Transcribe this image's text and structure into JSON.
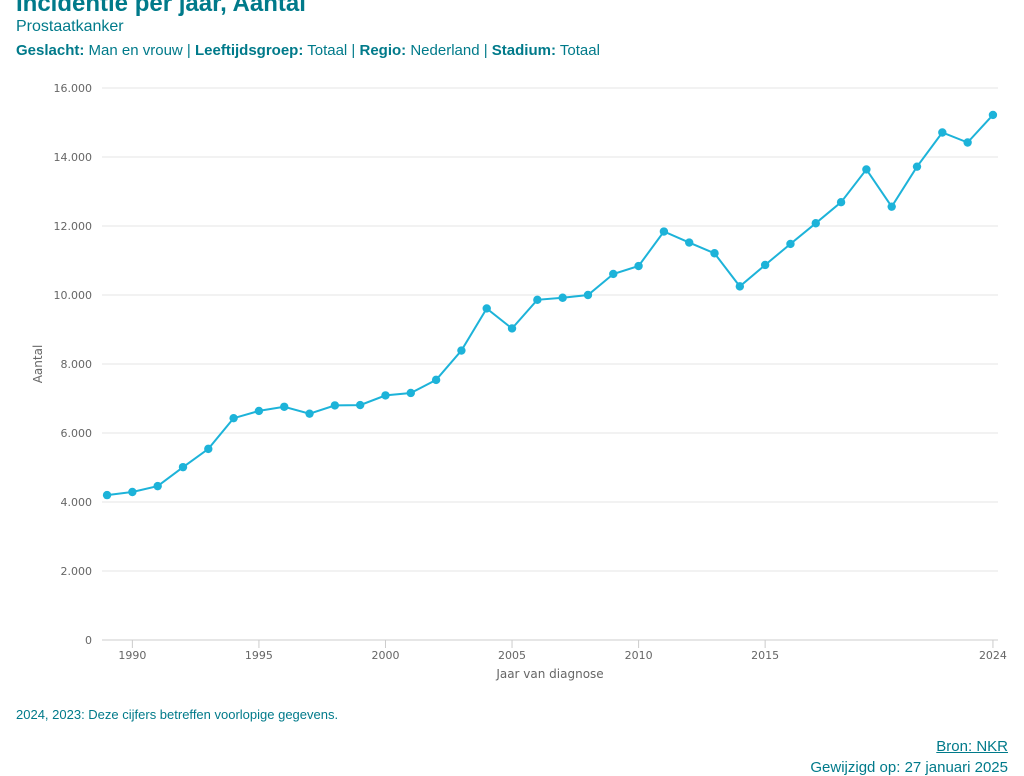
{
  "header": {
    "title": "Incidentie per jaar, Aantal",
    "subtitle": "Prostaatkanker",
    "filters": [
      {
        "label": "Geslacht:",
        "value": "Man en vrouw"
      },
      {
        "label": "Leeftijdsgroep:",
        "value": "Totaal"
      },
      {
        "label": "Regio:",
        "value": "Nederland"
      },
      {
        "label": "Stadium:",
        "value": "Totaal"
      }
    ],
    "separator": " | "
  },
  "footer": {
    "note": "2024, 2023: Deze cijfers betreffen voorlopige gegevens.",
    "source": "Bron: NKR",
    "changed": "Gewijzigd op: 27 januari 2025"
  },
  "colors": {
    "series": "#1db3d9",
    "text": "#007a8a",
    "grid": "#e6e6e6",
    "axis_text": "#666666"
  },
  "chart_data": {
    "type": "line",
    "title": "",
    "xlabel": "Jaar van diagnose",
    "ylabel": "Aantal",
    "ylim": [
      0,
      16000
    ],
    "xlim": [
      1988.8,
      2024.2
    ],
    "yticks": [
      0,
      2000,
      4000,
      6000,
      8000,
      10000,
      12000,
      14000,
      16000
    ],
    "ytick_labels": [
      "0",
      "2.000",
      "4.000",
      "6.000",
      "8.000",
      "10.000",
      "12.000",
      "14.000",
      "16.000"
    ],
    "xticks": [
      1990,
      1995,
      2000,
      2005,
      2010,
      2015,
      2024
    ],
    "xtick_labels": [
      "1990",
      "1995",
      "2000",
      "2005",
      "2010",
      "2015",
      "2024"
    ],
    "grid": true,
    "legend": "none",
    "series": [
      {
        "x": [
          1989,
          1990,
          1991,
          1992,
          1993,
          1994,
          1995,
          1996,
          1997,
          1998,
          1999,
          2000,
          2001,
          2002,
          2003,
          2004,
          2005,
          2006,
          2007,
          2008,
          2009,
          2010,
          2011,
          2012,
          2013,
          2014,
          2015,
          2016,
          2017,
          2018,
          2019,
          2020,
          2021,
          2022,
          2023,
          2024
        ],
        "values": [
          4200,
          4290,
          4460,
          5010,
          5540,
          6430,
          6640,
          6760,
          6560,
          6800,
          6810,
          7090,
          7160,
          7540,
          8390,
          9610,
          9030,
          9860,
          9920,
          10000,
          10610,
          10840,
          11840,
          11520,
          11210,
          10250,
          10870,
          11480,
          12080,
          12690,
          13640,
          12560,
          13720,
          14710,
          14420,
          15220
        ]
      }
    ]
  }
}
